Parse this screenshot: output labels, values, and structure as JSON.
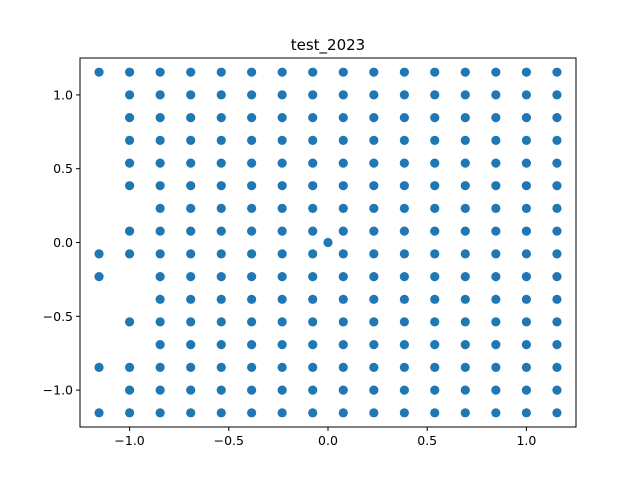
{
  "chart_data": {
    "type": "scatter",
    "title": "test_2023",
    "xlabel": "",
    "ylabel": "",
    "xlim": [
      -1.25,
      1.25
    ],
    "ylim": [
      -1.25,
      1.25
    ],
    "x_ticks": [
      -1.0,
      -0.5,
      0.0,
      0.5,
      1.0
    ],
    "y_ticks": [
      -1.0,
      -0.5,
      0.0,
      0.5,
      1.0
    ],
    "x_tick_labels": [
      "−1.0",
      "−0.5",
      "0.0",
      "0.5",
      "1.0"
    ],
    "y_tick_labels": [
      "−1.0",
      "−0.5",
      "0.0",
      "0.5",
      "1.0"
    ],
    "grid": false,
    "color": "#1f77b4",
    "grid_levels": [
      -1.154,
      -1.0,
      -0.846,
      -0.692,
      -0.538,
      -0.385,
      -0.231,
      -0.077,
      0.077,
      0.231,
      0.385,
      0.538,
      0.692,
      0.846,
      1.0,
      1.154
    ],
    "special_points": [
      {
        "x": 0.0,
        "y": 0.0
      }
    ],
    "column_y_values": [
      [
        1.154,
        -0.077,
        -0.231,
        -0.846,
        -1.154
      ],
      [
        1.154,
        1.0,
        0.846,
        0.692,
        0.538,
        0.385,
        0.077,
        -0.077,
        -0.538,
        -0.846,
        -1.0,
        -1.154
      ],
      [
        1.154,
        1.0,
        0.846,
        0.692,
        0.538,
        0.385,
        0.231,
        0.077,
        -0.077,
        -0.231,
        -0.385,
        -0.538,
        -0.692,
        -0.846,
        -1.0,
        -1.154
      ],
      [
        1.154,
        1.0,
        0.846,
        0.692,
        0.538,
        0.385,
        0.231,
        0.077,
        -0.077,
        -0.231,
        -0.385,
        -0.538,
        -0.692,
        -0.846,
        -1.0,
        -1.154
      ],
      [
        1.154,
        1.0,
        0.846,
        0.692,
        0.538,
        0.385,
        0.231,
        0.077,
        -0.077,
        -0.231,
        -0.385,
        -0.538,
        -0.692,
        -0.846,
        -1.0,
        -1.154
      ],
      [
        1.154,
        1.0,
        0.846,
        0.692,
        0.538,
        0.385,
        0.231,
        0.077,
        -0.077,
        -0.231,
        -0.385,
        -0.538,
        -0.692,
        -0.846,
        -1.0,
        -1.154
      ],
      [
        1.154,
        1.0,
        0.846,
        0.692,
        0.538,
        0.385,
        0.231,
        0.077,
        -0.077,
        -0.231,
        -0.385,
        -0.538,
        -0.692,
        -0.846,
        -1.0,
        -1.154
      ],
      [
        1.154,
        1.0,
        0.846,
        0.692,
        0.538,
        0.385,
        0.231,
        0.077,
        -0.077,
        -0.231,
        -0.385,
        -0.538,
        -0.692,
        -0.846,
        -1.0,
        -1.154
      ],
      [
        1.154,
        1.0,
        0.846,
        0.692,
        0.538,
        0.385,
        0.231,
        0.077,
        -0.077,
        -0.231,
        -0.385,
        -0.538,
        -0.692,
        -0.846,
        -1.0,
        -1.154
      ],
      [
        1.154,
        1.0,
        0.846,
        0.692,
        0.538,
        0.385,
        0.231,
        0.077,
        -0.077,
        -0.231,
        -0.385,
        -0.538,
        -0.692,
        -0.846,
        -1.0,
        -1.154
      ],
      [
        1.154,
        1.0,
        0.846,
        0.692,
        0.538,
        0.385,
        0.231,
        0.077,
        -0.077,
        -0.231,
        -0.385,
        -0.538,
        -0.692,
        -0.846,
        -1.0,
        -1.154
      ],
      [
        1.154,
        1.0,
        0.846,
        0.692,
        0.538,
        0.385,
        0.231,
        0.077,
        -0.077,
        -0.231,
        -0.385,
        -0.538,
        -0.692,
        -0.846,
        -1.0,
        -1.154
      ],
      [
        1.154,
        1.0,
        0.846,
        0.692,
        0.538,
        0.385,
        0.231,
        0.077,
        -0.077,
        -0.231,
        -0.385,
        -0.538,
        -0.692,
        -0.846,
        -1.0,
        -1.154
      ],
      [
        1.154,
        1.0,
        0.846,
        0.692,
        0.538,
        0.385,
        0.231,
        0.077,
        -0.077,
        -0.231,
        -0.385,
        -0.538,
        -0.692,
        -0.846,
        -1.0,
        -1.154
      ],
      [
        1.154,
        1.0,
        0.846,
        0.692,
        0.538,
        0.385,
        0.231,
        0.077,
        -0.077,
        -0.231,
        -0.385,
        -0.538,
        -0.692,
        -0.846,
        -1.0,
        -1.154
      ],
      [
        1.154,
        1.0,
        0.846,
        0.692,
        0.538,
        0.385,
        0.231,
        0.077,
        -0.077,
        -0.231,
        -0.385,
        -0.538,
        -0.692,
        -0.846,
        -1.0,
        -1.154
      ]
    ]
  }
}
